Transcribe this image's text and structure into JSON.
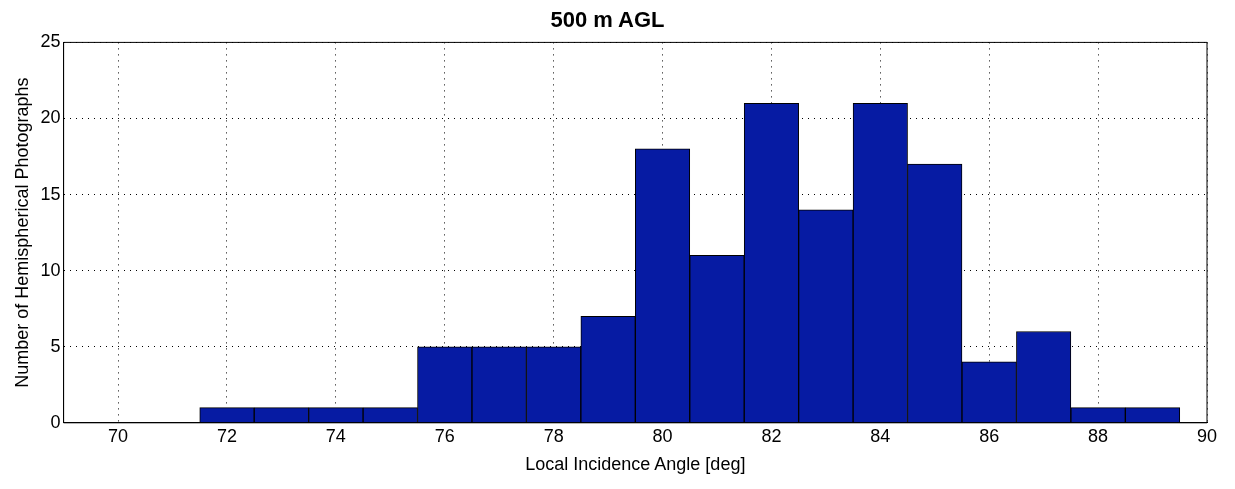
{
  "chart_data": {
    "type": "histogram",
    "title": "500 m AGL",
    "xlabel": "Local Incidence Angle [deg]",
    "ylabel": "Number of Hemispherical Photographs",
    "bins": [
      71.5,
      72.5,
      73.5,
      74.5,
      75.5,
      76.5,
      77.5,
      78.5,
      79.5,
      80.5,
      81.5,
      82.5,
      83.5,
      84.5,
      85.5,
      86.5,
      87.5,
      88.5,
      89.5
    ],
    "values": [
      1,
      1,
      1,
      1,
      5,
      5,
      5,
      7,
      18,
      11,
      21,
      14,
      21,
      17,
      4,
      6,
      1,
      1
    ],
    "color": "#061ba3",
    "xlim": [
      69,
      90
    ],
    "xticks": [
      70,
      72,
      74,
      76,
      78,
      80,
      82,
      84,
      86,
      88,
      90
    ],
    "ylim": [
      0,
      25
    ],
    "yticks": [
      0,
      5,
      10,
      15,
      20,
      25
    ],
    "grid": true
  }
}
